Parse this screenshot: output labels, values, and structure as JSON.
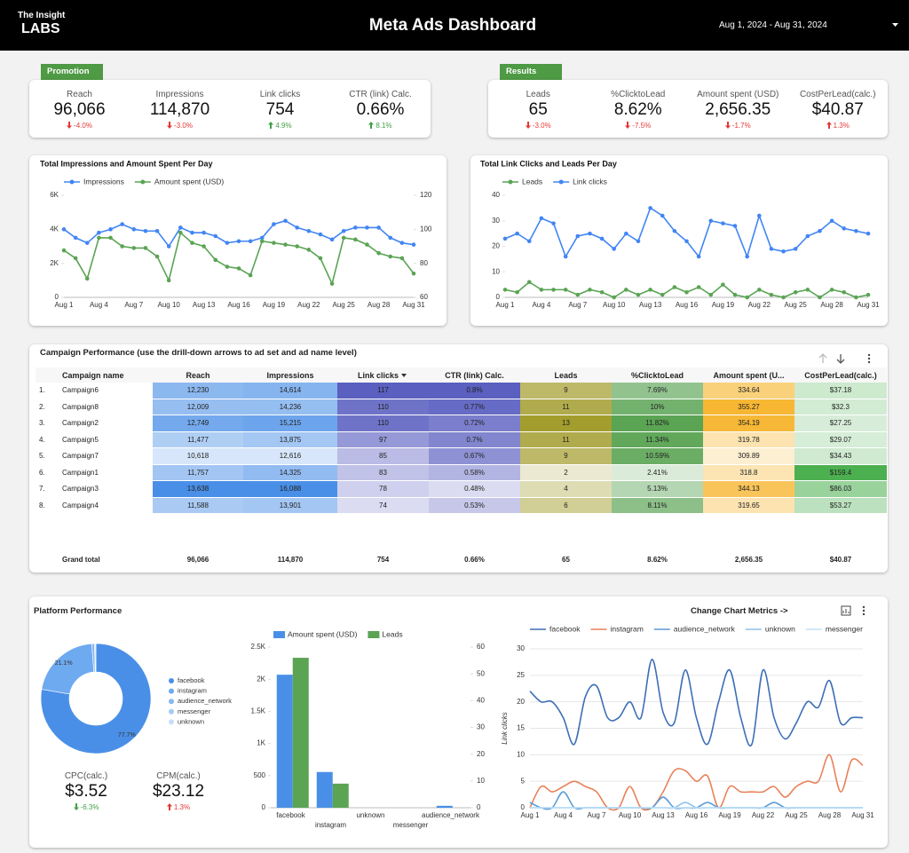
{
  "header": {
    "brand_top": "The Insight",
    "brand_bottom": "LABS",
    "title": "Meta Ads Dashboard",
    "date_range": "Aug 1, 2024 - Aug 31, 2024"
  },
  "promotion": {
    "tab": "Promotion",
    "kpis": [
      {
        "label": "Reach",
        "value": "96,066",
        "delta": "-4.0%",
        "trend": "down",
        "color": "#e53935"
      },
      {
        "label": "Impressions",
        "value": "114,870",
        "delta": "-3.0%",
        "trend": "down",
        "color": "#e53935"
      },
      {
        "label": "Link clicks",
        "value": "754",
        "delta": "4.9%",
        "trend": "up",
        "color": "#43a047"
      },
      {
        "label": "CTR (link) Calc.",
        "value": "0.66%",
        "delta": "8.1%",
        "trend": "up",
        "color": "#43a047"
      }
    ]
  },
  "results": {
    "tab": "Results",
    "kpis": [
      {
        "label": "Leads",
        "value": "65",
        "delta": "-3.0%",
        "trend": "down",
        "color": "#e53935"
      },
      {
        "label": "%ClicktoLead",
        "value": "8.62%",
        "delta": "-7.5%",
        "trend": "down",
        "color": "#e53935"
      },
      {
        "label": "Amount spent (USD)",
        "value": "2,656.35",
        "delta": "-1.7%",
        "trend": "down",
        "color": "#e53935"
      },
      {
        "label": "CostPerLead(calc.)",
        "value": "$40.87",
        "delta": "1.3%",
        "trend": "up",
        "color": "#e53935"
      }
    ]
  },
  "table": {
    "title": "Campaign Performance (use the drill-down arrows to ad set and ad name level)",
    "columns": [
      "Campaign name",
      "Reach",
      "Impressions",
      "Link clicks",
      "CTR (link) Calc.",
      "Leads",
      "%ClicktoLead",
      "Amount spent (U...",
      "CostPerLead(calc.)"
    ],
    "heat_colors": [
      null,
      "#4a8fe7",
      "#4a8fe7",
      "#5a5fc0",
      "#5a5fc0",
      "#a39d2e",
      "#5aa454",
      "#f7b733",
      "#4caf50"
    ],
    "row_numbers": [
      "1.",
      "2.",
      "3.",
      "4.",
      "5.",
      "6.",
      "7.",
      "8."
    ],
    "rows": [
      [
        "Campaign6",
        "12,230",
        "14,614",
        "117",
        "0.8%",
        "9",
        "7.69%",
        "334.64",
        "$37.18"
      ],
      [
        "Campaign8",
        "12,009",
        "14,236",
        "110",
        "0.77%",
        "11",
        "10%",
        "355.27",
        "$32.3"
      ],
      [
        "Campaign2",
        "12,749",
        "15,215",
        "110",
        "0.72%",
        "13",
        "11.82%",
        "354.19",
        "$27.25"
      ],
      [
        "Campaign5",
        "11,477",
        "13,875",
        "97",
        "0.7%",
        "11",
        "11.34%",
        "319.78",
        "$29.07"
      ],
      [
        "Campaign7",
        "10,618",
        "12,616",
        "85",
        "0.67%",
        "9",
        "10.59%",
        "309.89",
        "$34.43"
      ],
      [
        "Campaign1",
        "11,757",
        "14,325",
        "83",
        "0.58%",
        "2",
        "2.41%",
        "318.8",
        "$159.4"
      ],
      [
        "Campaign3",
        "13,638",
        "16,088",
        "78",
        "0.48%",
        "4",
        "5.13%",
        "344.13",
        "$86.03"
      ],
      [
        "Campaign4",
        "11,588",
        "13,901",
        "74",
        "0.53%",
        "6",
        "8.11%",
        "319.65",
        "$53.27"
      ]
    ],
    "total": [
      "Grand total",
      "96,066",
      "114,870",
      "754",
      "0.66%",
      "65",
      "8.62%",
      "2,656.35",
      "$40.87"
    ]
  },
  "platform": {
    "title": "Platform Performance",
    "metrics_button": "Change Chart Metrics ->",
    "kpis": [
      {
        "label": "CPC(calc.)",
        "value": "$3.52",
        "delta": "-6.3%",
        "trend": "down",
        "color": "#43a047"
      },
      {
        "label": "CPM(calc.)",
        "value": "$23.12",
        "delta": "1.3%",
        "trend": "up",
        "color": "#e53935"
      }
    ]
  },
  "chart_data": [
    {
      "type": "line",
      "title": "Total Impressions and Amount Spent Per Day",
      "categories": [
        "Aug 1",
        null,
        null,
        "Aug 4",
        null,
        null,
        "Aug 7",
        null,
        null,
        "Aug 10",
        null,
        null,
        "Aug 13",
        null,
        null,
        "Aug 16",
        null,
        null,
        "Aug 19",
        null,
        null,
        "Aug 22",
        null,
        null,
        "Aug 25",
        null,
        null,
        "Aug 28",
        null,
        null,
        "Aug 31"
      ],
      "series": [
        {
          "name": "Impressions",
          "color": "#4285f4",
          "values": [
            4000,
            3500,
            3200,
            3800,
            4000,
            4300,
            4000,
            3900,
            3900,
            3000,
            4100,
            3800,
            3800,
            3600,
            3200,
            3300,
            3300,
            3500,
            4300,
            4500,
            4100,
            3900,
            3700,
            3400,
            3900,
            4100,
            4100,
            4100,
            3500,
            3200,
            3100
          ]
        },
        {
          "name": "Amount spent (USD)",
          "color": "#5aa454",
          "axis": "y2",
          "values": [
            87.6,
            83,
            71,
            95,
            95,
            90,
            89,
            89,
            84,
            70,
            98,
            92,
            90,
            82,
            78,
            77,
            73,
            93,
            92,
            91,
            90,
            88,
            83,
            68,
            95,
            94,
            91,
            86,
            84,
            83,
            74
          ]
        }
      ],
      "ylim": [
        0,
        6000
      ],
      "yticks": [
        0,
        {
          "value": 2000,
          "label": "2K"
        },
        {
          "value": 4000,
          "label": "4K"
        },
        {
          "value": 6000,
          "label": "6K"
        }
      ],
      "y2lim": [
        60,
        120
      ],
      "y2ticks": [
        60,
        80,
        100,
        120
      ],
      "markers": true
    },
    {
      "type": "line",
      "title": "Total Link Clicks and Leads Per Day",
      "categories": [
        "Aug 1",
        null,
        null,
        "Aug 4",
        null,
        null,
        "Aug 7",
        null,
        null,
        "Aug 10",
        null,
        null,
        "Aug 13",
        null,
        null,
        "Aug 16",
        null,
        null,
        "Aug 19",
        null,
        null,
        "Aug 22",
        null,
        null,
        "Aug 25",
        null,
        null,
        "Aug 28",
        null,
        null,
        "Aug 31"
      ],
      "series": [
        {
          "name": "Leads",
          "color": "#5aa454",
          "values": [
            3,
            2,
            6,
            3,
            3,
            3,
            1,
            3,
            2,
            0,
            3,
            1,
            3,
            1,
            4,
            2,
            4,
            1,
            5,
            1,
            0,
            3,
            1,
            0,
            2,
            3,
            0,
            3,
            2,
            0,
            1
          ]
        },
        {
          "name": "Link clicks",
          "color": "#4285f4",
          "values": [
            23,
            25,
            22,
            31,
            29,
            16,
            24,
            25,
            23,
            19,
            25,
            22,
            35,
            32,
            26,
            22,
            16,
            30,
            29,
            28,
            16,
            32,
            19,
            18,
            19,
            24,
            26,
            30,
            27,
            26,
            25
          ]
        }
      ],
      "ylim": [
        0,
        40
      ],
      "yticks": [
        0,
        10,
        20,
        30,
        40
      ],
      "markers": true
    },
    {
      "type": "pie",
      "categories": [
        "facebook",
        "instagram",
        "audience_network",
        "messenger",
        "unknown"
      ],
      "values": [
        77.7,
        21.1,
        0.8,
        0.3,
        0.1
      ],
      "value_labels": [
        "77.7%",
        "21.1%",
        null,
        null,
        null
      ],
      "colors": [
        "#4a8fe7",
        "#6eaaf0",
        "#86b9f0",
        "#a6cbf3",
        "#c8def7"
      ]
    },
    {
      "type": "bar",
      "categories": [
        "facebook",
        "instagram",
        "unknown",
        "messenger",
        "audience_network"
      ],
      "series": [
        {
          "name": "Amount spent (USD)",
          "color": "#4a8fe7",
          "values": [
            2070,
            556,
            0,
            0,
            30
          ]
        },
        {
          "name": "Leads",
          "color": "#5aa454",
          "axis": "y2",
          "values": [
            56,
            9,
            0,
            0,
            0
          ]
        }
      ],
      "ylim": [
        0,
        2500
      ],
      "yticks": [
        0,
        500,
        {
          "value": 1000,
          "label": "1K"
        },
        {
          "value": 1500,
          "label": "1.5K"
        },
        {
          "value": 2000,
          "label": "2K"
        },
        {
          "value": 2500,
          "label": "2.5K"
        }
      ],
      "y2lim": [
        0,
        60
      ],
      "y2ticks": [
        0,
        10,
        20,
        30,
        40,
        50,
        60
      ]
    },
    {
      "type": "line",
      "y_label": "Link clicks",
      "categories": [
        "Aug 1",
        null,
        null,
        "Aug 4",
        null,
        null,
        "Aug 7",
        null,
        null,
        "Aug 10",
        null,
        null,
        "Aug 13",
        null,
        null,
        "Aug 16",
        null,
        null,
        "Aug 19",
        null,
        null,
        "Aug 22",
        null,
        null,
        "Aug 25",
        null,
        null,
        "Aug 28",
        null,
        null,
        "Aug 31"
      ],
      "series": [
        {
          "name": "facebook",
          "color": "#3d6fb6",
          "values": [
            22,
            20,
            20,
            17,
            12,
            21,
            23,
            17,
            17,
            20,
            17,
            28,
            18,
            16,
            26,
            17,
            12,
            20,
            26,
            17,
            12,
            26,
            17,
            13,
            16,
            20,
            19,
            24,
            16,
            17,
            17
          ]
        },
        {
          "name": "instagram",
          "color": "#e8825a",
          "values": [
            0,
            4,
            3,
            4,
            5,
            4,
            3,
            0,
            0,
            4,
            0,
            0,
            3,
            7,
            7,
            5,
            6,
            0,
            4,
            3,
            3,
            3,
            4,
            2,
            4,
            5,
            5,
            10,
            3,
            9,
            8
          ]
        },
        {
          "name": "audience_network",
          "color": "#5b9bd5",
          "values": [
            1,
            0,
            0,
            3,
            0,
            0,
            0,
            0,
            0,
            0,
            0,
            0,
            2,
            0,
            0,
            0,
            1,
            0,
            0,
            0,
            0,
            0,
            1,
            0,
            0,
            0,
            0,
            0,
            0,
            0,
            0
          ]
        },
        {
          "name": "unknown",
          "color": "#8ec1ea",
          "values": [
            0,
            0,
            0,
            0,
            0,
            0,
            0,
            0,
            0,
            0,
            0,
            0,
            0,
            0,
            1,
            0,
            0,
            0,
            0,
            0,
            0,
            0,
            0,
            0,
            0,
            0,
            0,
            0,
            0,
            0,
            0
          ]
        },
        {
          "name": "messenger",
          "color": "#bfe0f7",
          "values": [
            0,
            0,
            0,
            0,
            0,
            0,
            0,
            0,
            0,
            0,
            0,
            0,
            0,
            0,
            0,
            0,
            0,
            0,
            0,
            0,
            0,
            0,
            0,
            0,
            0,
            0,
            0,
            0,
            0,
            0,
            0
          ]
        }
      ],
      "ylim": [
        0,
        30
      ],
      "yticks": [
        0,
        5,
        10,
        15,
        20,
        25,
        30
      ],
      "grid": true,
      "smooth": true
    }
  ]
}
